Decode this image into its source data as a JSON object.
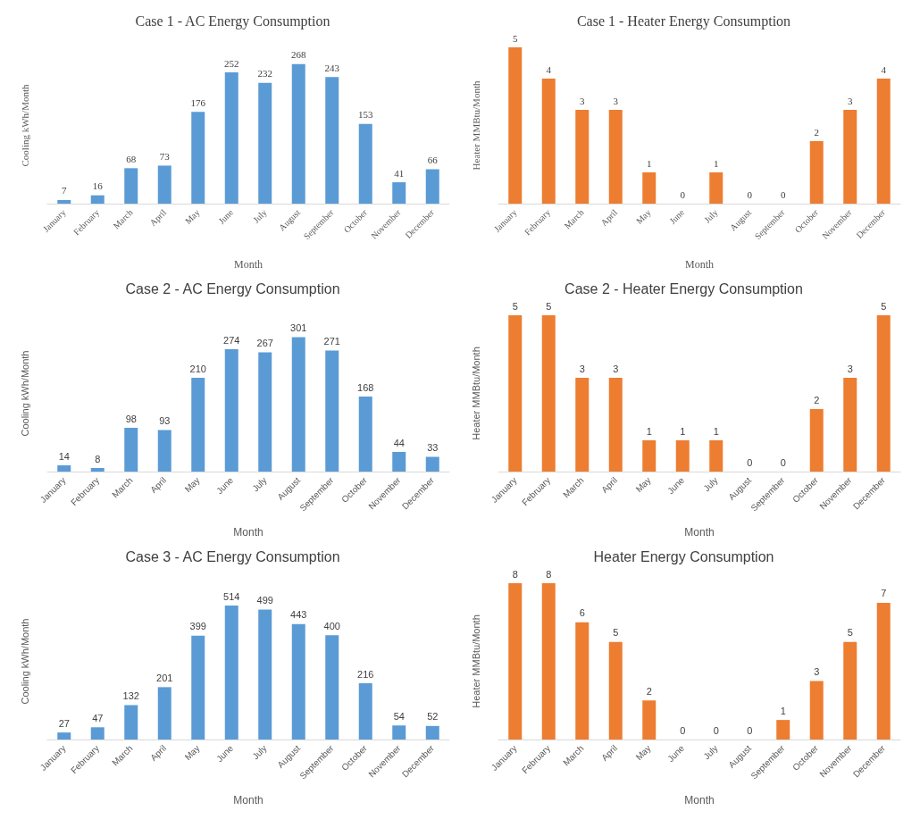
{
  "chart_data": [
    {
      "type": "bar",
      "title": "Case 1 - AC Energy Consumption",
      "xlabel": "Month",
      "ylabel": "Cooling kWh/Month",
      "categories": [
        "January",
        "February",
        "March",
        "April",
        "May",
        "June",
        "July",
        "August",
        "September",
        "October",
        "November",
        "December"
      ],
      "series": [
        {
          "color": "#5b9bd5",
          "values": [
            7,
            16,
            68,
            73,
            176,
            252,
            232,
            268,
            243,
            153,
            41,
            66
          ]
        }
      ],
      "data_labels": true
    },
    {
      "type": "bar",
      "title": "Case 1 - Heater Energy Consumption",
      "xlabel": "Month",
      "ylabel": "Heater MMBtu/Month",
      "categories": [
        "January",
        "February",
        "March",
        "April",
        "May",
        "June",
        "July",
        "August",
        "September",
        "October",
        "November",
        "December"
      ],
      "series": [
        {
          "color": "#ed7d31",
          "values": [
            5,
            4,
            3,
            3,
            1,
            0,
            1,
            0,
            0,
            2,
            3,
            4
          ]
        }
      ],
      "data_labels": true
    },
    {
      "type": "bar",
      "title": "Case 2 - AC Energy Consumption",
      "xlabel": "Month",
      "ylabel": "Cooling kWh/Month",
      "categories": [
        "January",
        "February",
        "March",
        "April",
        "May",
        "June",
        "July",
        "August",
        "September",
        "October",
        "November",
        "December"
      ],
      "series": [
        {
          "color": "#5b9bd5",
          "values": [
            14,
            8,
            98,
            93,
            210,
            274,
            267,
            301,
            271,
            168,
            44,
            33
          ]
        }
      ],
      "data_labels": true
    },
    {
      "type": "bar",
      "title": "Case 2 - Heater Energy Consumption",
      "xlabel": "Month",
      "ylabel": "Heater MMBtu/Month",
      "categories": [
        "January",
        "February",
        "March",
        "April",
        "May",
        "June",
        "July",
        "August",
        "September",
        "October",
        "November",
        "December"
      ],
      "series": [
        {
          "color": "#ed7d31",
          "values": [
            5,
            5,
            3,
            3,
            1,
            1,
            1,
            0,
            0,
            2,
            3,
            5
          ]
        }
      ],
      "data_labels": true
    },
    {
      "type": "bar",
      "title": "Case 3 - AC Energy Consumption",
      "xlabel": "Month",
      "ylabel": "Cooling kWh/Month",
      "categories": [
        "January",
        "February",
        "March",
        "April",
        "May",
        "June",
        "July",
        "August",
        "September",
        "October",
        "November",
        "December"
      ],
      "series": [
        {
          "color": "#5b9bd5",
          "values": [
            27,
            47,
            132,
            201,
            399,
            514,
            499,
            443,
            400,
            216,
            54,
            52
          ]
        }
      ],
      "data_labels": true
    },
    {
      "type": "bar",
      "title": "Heater Energy Consumption",
      "xlabel": "Month",
      "ylabel": "Heater MMBtu/Month",
      "categories": [
        "January",
        "February",
        "March",
        "April",
        "May",
        "June",
        "July",
        "August",
        "September",
        "October",
        "November",
        "December"
      ],
      "series": [
        {
          "color": "#ed7d31",
          "values": [
            8,
            8,
            6,
            5,
            2,
            0,
            0,
            0,
            1,
            3,
            5,
            7
          ]
        }
      ],
      "data_labels": true
    }
  ]
}
